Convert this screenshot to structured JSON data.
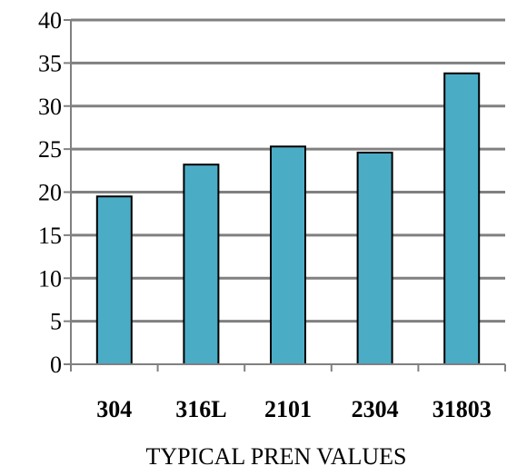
{
  "chart_data": {
    "type": "bar",
    "title": "",
    "xlabel": "TYPICAL PREN VALUES",
    "ylabel": "",
    "categories": [
      "304",
      "316L",
      "2101",
      "2304",
      "31803"
    ],
    "values": [
      19.5,
      23.2,
      25.3,
      24.6,
      33.8
    ],
    "ylim": [
      0,
      40
    ],
    "y_ticks": [
      "0",
      "5",
      "10",
      "15",
      "20",
      "25",
      "30",
      "35",
      "40"
    ],
    "grid": true,
    "legend": "none",
    "colors": {
      "bar_fill": "#4bacc6",
      "bar_stroke": "#000000",
      "grid": "#808080",
      "axis": "#808080"
    }
  }
}
